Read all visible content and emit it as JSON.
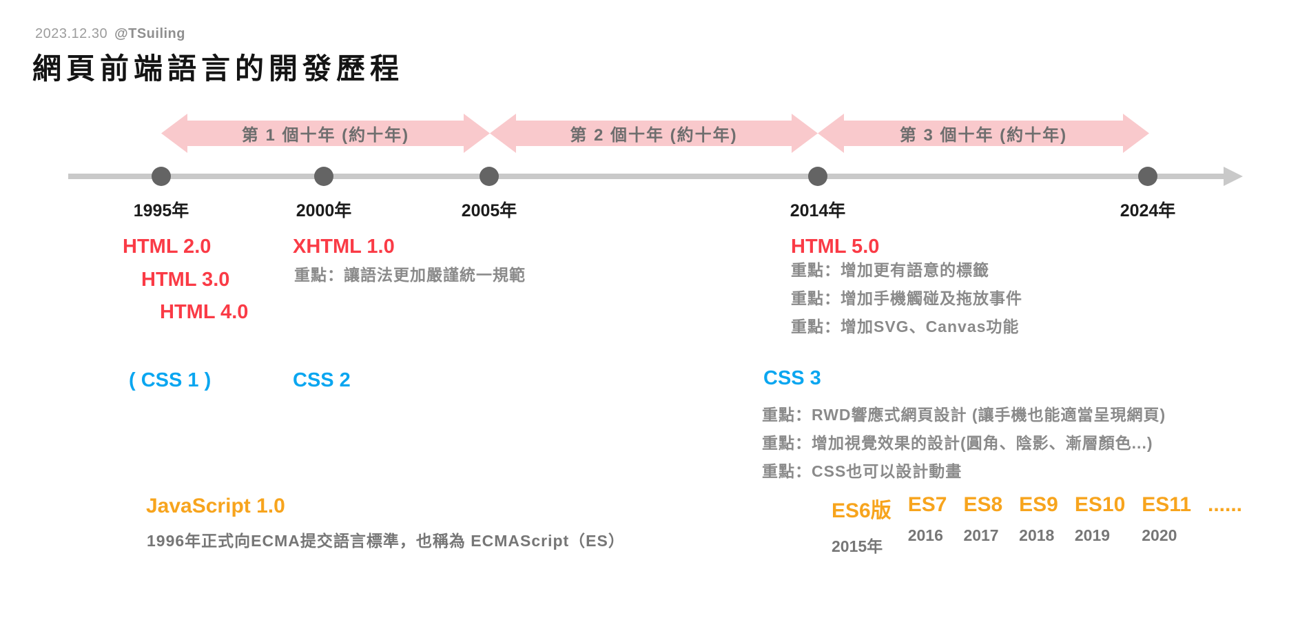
{
  "header": {
    "date": "2023.12.30",
    "handle": "@TSuiling",
    "title": "網頁前端語言的開發歷程"
  },
  "decades": {
    "arrow1": "第 1 個十年 (約十年)",
    "arrow2": "第 2 個十年 (約十年)",
    "arrow3": "第 3 個十年 (約十年)"
  },
  "timeline": {
    "years": [
      "1995年",
      "2000年",
      "2005年",
      "2014年",
      "2024年"
    ]
  },
  "html_versions": {
    "v2": "HTML 2.0",
    "v3": "HTML 3.0",
    "v4": "HTML 4.0",
    "xhtml": {
      "name": "XHTML 1.0",
      "note": "重點：讓語法更加嚴謹統一規範"
    },
    "html5": {
      "name": "HTML 5.0",
      "notes": [
        "重點：增加更有語意的標籤",
        "重點：增加手機觸碰及拖放事件",
        "重點：增加SVG、Canvas功能"
      ]
    }
  },
  "css_versions": {
    "css1": "( CSS 1 )",
    "css2": "CSS 2",
    "css3": {
      "name": "CSS 3",
      "notes": [
        "重點：RWD響應式網頁設計 (讓手機也能適當呈現網頁)",
        "重點：增加視覺效果的設計(圓角、陰影、漸層顏色...)",
        "重點：CSS也可以設計動畫"
      ]
    }
  },
  "javascript": {
    "v1": {
      "name": "JavaScript 1.0",
      "note": "1996年正式向ECMA提交語言標準，也稱為 ECMAScript（ES）"
    },
    "es_versions": [
      {
        "label": "ES6版",
        "year": "2015年"
      },
      {
        "label": "ES7",
        "year": "2016"
      },
      {
        "label": "ES8",
        "year": "2017"
      },
      {
        "label": "ES9",
        "year": "2018"
      },
      {
        "label": "ES10",
        "year": "2019"
      },
      {
        "label": "ES11",
        "year": "2020"
      },
      {
        "label": "......",
        "year": ""
      }
    ]
  },
  "colors": {
    "html_red": "#fa3b46",
    "css_blue": "#0aa6f0",
    "js_orange": "#f7a41d",
    "arrow_pink": "#f9c9cc",
    "axis_gray": "#c9c9c9",
    "dot_gray": "#646464",
    "note_gray": "#8a8a8a",
    "year_dark": "#1c1c1c"
  }
}
